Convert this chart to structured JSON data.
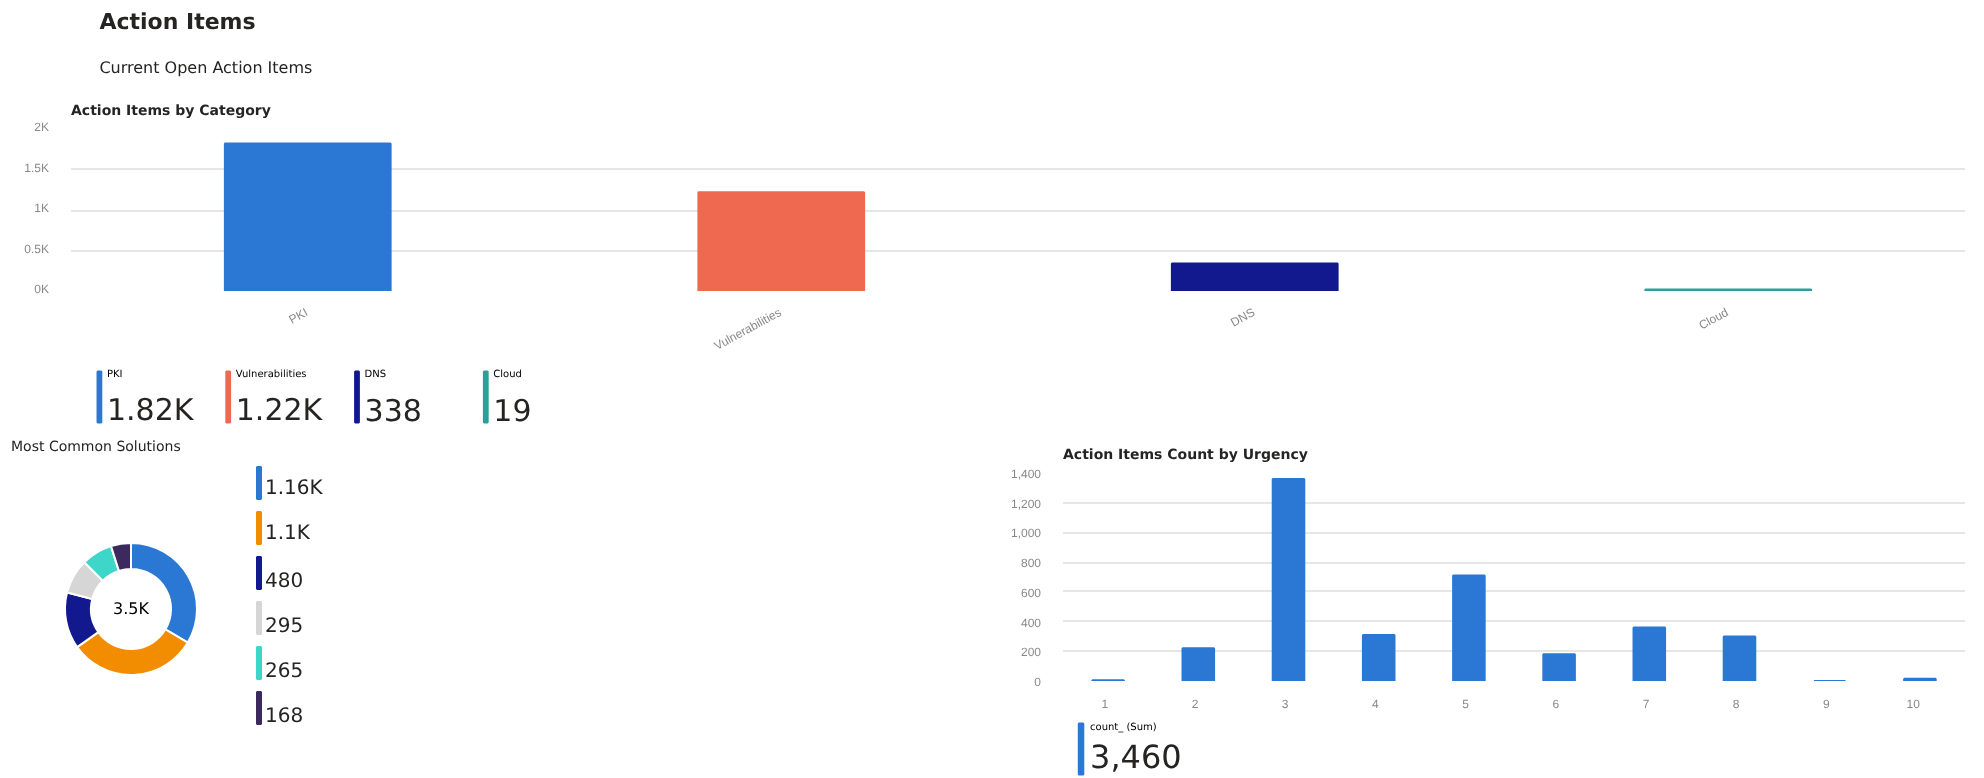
{
  "chart_data": [
    {
      "type": "other",
      "title": "Action Items",
      "subtitle": "Current Open Action Items"
    },
    {
      "type": "bar",
      "title": "Action Items by Category",
      "categories": [
        "PKI",
        "Vulnerabilities",
        "DNS",
        "Cloud"
      ],
      "values": [
        1820,
        1220,
        338,
        19
      ],
      "colors": [
        "#2b78d4",
        "#ef6950",
        "#12198f",
        "#2aa198"
      ],
      "ylim": [
        0,
        2000
      ],
      "yticks": [
        {
          "value": 0,
          "label": "0K"
        },
        {
          "value": 500,
          "label": "0.5K"
        },
        {
          "value": 1000,
          "label": "1K"
        },
        {
          "value": 1500,
          "label": "1.5K"
        },
        {
          "value": 2000,
          "label": "2K"
        }
      ],
      "grid": "y"
    },
    {
      "type": "other",
      "annotations": [
        "PKI",
        "1.82K",
        "Vulnerabilities",
        "1.22K",
        "DNS",
        "338",
        "Cloud",
        "19"
      ],
      "colors": [
        "#2b78d4",
        "#ef6950",
        "#12198f",
        "#2aa198"
      ]
    },
    {
      "type": "donut",
      "title": "Most Common Solutions",
      "categories": [
        null,
        null,
        null,
        null,
        null,
        null
      ],
      "values": [
        33.5,
        31.7,
        13.8,
        8.5,
        7.6,
        4.9
      ],
      "colors": [
        "#2b78d4",
        "#f28c00",
        "#12198f",
        "#d6d6d6",
        "#3ed6c8",
        "#3c2a5e"
      ],
      "annotations": [
        "3.5K",
        "1.16K",
        "1.1K",
        "480",
        "295",
        "265",
        "168"
      ]
    },
    {
      "type": "bar",
      "title": "Action Items Count by Urgency",
      "categories": [
        "1",
        "2",
        "3",
        "4",
        "5",
        "6",
        "7",
        "8",
        "9",
        "10"
      ],
      "values": [
        5,
        220,
        1360,
        310,
        710,
        180,
        360,
        300,
        0,
        15
      ],
      "color": "#2b78d4",
      "ylim": [
        0,
        1400
      ],
      "yticks": [
        0,
        200,
        400,
        600,
        800,
        {
          "value": 1000,
          "label": "1,000"
        },
        {
          "value": 1200,
          "label": "1,200"
        },
        {
          "value": 1400,
          "label": "1,400"
        }
      ],
      "grid": "y",
      "annotations": [
        "count_ (Sum)",
        "3,460"
      ]
    }
  ]
}
